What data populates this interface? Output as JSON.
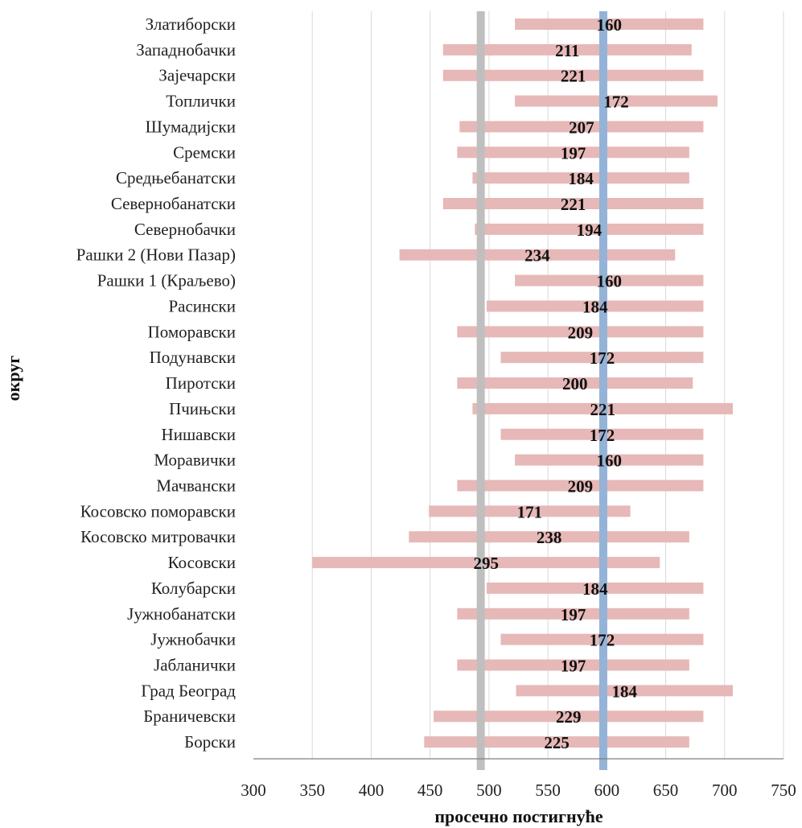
{
  "chart_data": {
    "type": "bar",
    "subtype": "floating-range-horizontal",
    "title": "",
    "xlabel": "просечно постигнуће",
    "ylabel": "округ",
    "xlim": [
      300,
      750
    ],
    "xticks": [
      300,
      350,
      400,
      450,
      500,
      550,
      600,
      650,
      700,
      750
    ],
    "grid": true,
    "legend": "none",
    "colors": {
      "range_bar": "#e6b8b7",
      "ref_line_grey": "#bfbfbf",
      "ref_line_blue": "#95b3d7",
      "grid": "#d9d9d9",
      "axis": "#808080"
    },
    "reference_lines": [
      {
        "x": 493,
        "color": "#bfbfbf"
      },
      {
        "x": 597,
        "color": "#95b3d7"
      }
    ],
    "categories": [
      "Златиборски",
      "Западнобачки",
      "Зајечарски",
      "Топлички",
      "Шумадијски",
      "Сремски",
      "Средњебанатски",
      "Севернобанатски",
      "Севернобачки",
      "Рашки 2 (Нови Пазар)",
      "Рашки 1 (Краљево)",
      "Расински",
      "Поморавски",
      "Подунавски",
      "Пиротски",
      "Пчињски",
      "Нишавски",
      "Моравички",
      "Мачвански",
      "Косовско поморавски",
      "Косовско митровачки",
      "Косовски",
      "Колубарски",
      "Јужнобанатски",
      "Јужнобачки",
      "Јабланички",
      "Град Београд",
      "Браничевски",
      "Борски"
    ],
    "ranges": [
      [
        522,
        682
      ],
      [
        461,
        672
      ],
      [
        461,
        682
      ],
      [
        522,
        694
      ],
      [
        475,
        682
      ],
      [
        473,
        670
      ],
      [
        486,
        670
      ],
      [
        461,
        682
      ],
      [
        488,
        682
      ],
      [
        424,
        658
      ],
      [
        522,
        682
      ],
      [
        498,
        682
      ],
      [
        473,
        682
      ],
      [
        510,
        682
      ],
      [
        473,
        673
      ],
      [
        486,
        707
      ],
      [
        510,
        682
      ],
      [
        522,
        682
      ],
      [
        473,
        682
      ],
      [
        449,
        620
      ],
      [
        432,
        670
      ],
      [
        350,
        645
      ],
      [
        498,
        682
      ],
      [
        473,
        670
      ],
      [
        510,
        682
      ],
      [
        473,
        670
      ],
      [
        523,
        707
      ],
      [
        453,
        682
      ],
      [
        445,
        670
      ]
    ],
    "labels": [
      160,
      211,
      221,
      172,
      207,
      197,
      184,
      221,
      194,
      234,
      160,
      184,
      209,
      172,
      200,
      221,
      172,
      160,
      209,
      171,
      238,
      295,
      184,
      197,
      172,
      197,
      184,
      229,
      225
    ]
  }
}
